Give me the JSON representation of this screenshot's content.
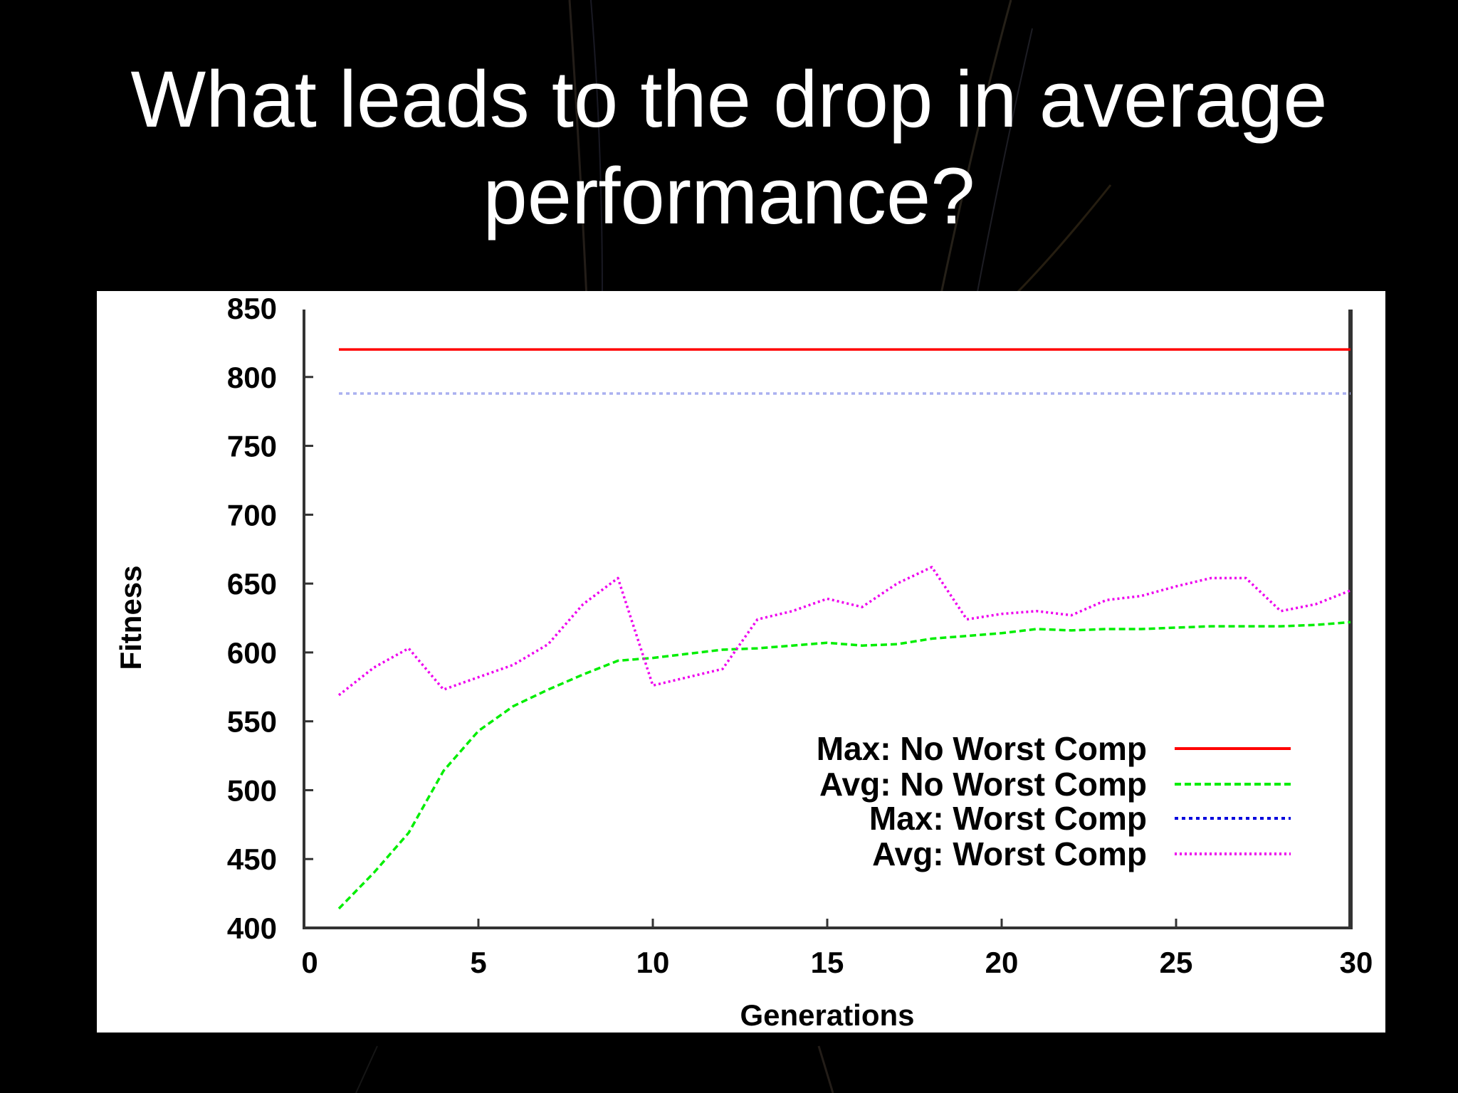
{
  "slide": {
    "title_line1": "What leads to the drop in average",
    "title_line2": "performance?"
  },
  "colors": {
    "background": "#000000",
    "panel": "#ffffff",
    "max_no_worst": "#ff0000",
    "avg_no_worst": "#00ee00",
    "max_worst_plot": "#aab0f0",
    "max_worst_legend": "#0000dd",
    "avg_worst": "#ee00ee",
    "axis": "#333333"
  },
  "chart_data": {
    "type": "line",
    "title": "",
    "xlabel": "Generations",
    "ylabel": "Fitness",
    "xlim": [
      0,
      30
    ],
    "ylim": [
      400,
      850
    ],
    "xticks": [
      "0",
      "5",
      "10",
      "15",
      "20",
      "25",
      "30"
    ],
    "yticks": [
      "400",
      "450",
      "500",
      "550",
      "600",
      "650",
      "700",
      "750",
      "800",
      "850"
    ],
    "grid": false,
    "legend_position": "lower right",
    "x": [
      1,
      2,
      3,
      4,
      5,
      6,
      7,
      8,
      9,
      10,
      11,
      12,
      13,
      14,
      15,
      16,
      17,
      18,
      19,
      20,
      21,
      22,
      23,
      24,
      25,
      26,
      27,
      28,
      29,
      30
    ],
    "series": [
      {
        "name": "Max: No Worst Comp",
        "style": "solid",
        "values": [
          820,
          820,
          820,
          820,
          820,
          820,
          820,
          820,
          820,
          820,
          820,
          820,
          820,
          820,
          820,
          820,
          820,
          820,
          820,
          820,
          820,
          820,
          820,
          820,
          820,
          820,
          820,
          820,
          820,
          820
        ]
      },
      {
        "name": "Avg: No Worst Comp",
        "style": "dashed",
        "values": [
          414,
          440,
          469,
          514,
          543,
          561,
          573,
          584,
          594,
          596,
          599,
          602,
          603,
          605,
          607,
          605,
          606,
          610,
          612,
          614,
          617,
          616,
          617,
          617,
          618,
          619,
          619,
          619,
          620,
          622
        ]
      },
      {
        "name": "Max: Worst Comp",
        "style": "dotted",
        "values": [
          788,
          788,
          788,
          788,
          788,
          788,
          788,
          788,
          788,
          788,
          788,
          788,
          788,
          788,
          788,
          788,
          788,
          788,
          788,
          788,
          788,
          788,
          788,
          788,
          788,
          788,
          788,
          788,
          788,
          788
        ]
      },
      {
        "name": "Avg: Worst Comp",
        "style": "dotted",
        "values": [
          569,
          589,
          603,
          573,
          582,
          591,
          606,
          635,
          654,
          576,
          582,
          588,
          624,
          630,
          639,
          633,
          650,
          662,
          624,
          628,
          630,
          627,
          638,
          641,
          648,
          654,
          654,
          630,
          635,
          645
        ]
      }
    ]
  }
}
